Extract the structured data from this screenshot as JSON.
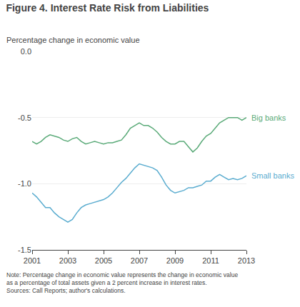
{
  "chart_data": {
    "type": "line",
    "title": "Figure 4. Interest Rate Risk from Liabilities",
    "ylabel": "Percentage change in economic value",
    "note": "Note: Percentage change in economic value represents the change in economic value\nas a percentage of total assets given a 2 percent increase in interest rates.\nSources: Call Reports; author's calculations.",
    "x": [
      2001.0,
      2001.25,
      2001.5,
      2001.75,
      2002.0,
      2002.25,
      2002.5,
      2002.75,
      2003.0,
      2003.25,
      2003.5,
      2003.75,
      2004.0,
      2004.25,
      2004.5,
      2004.75,
      2005.0,
      2005.25,
      2005.5,
      2005.75,
      2006.0,
      2006.25,
      2006.5,
      2006.75,
      2007.0,
      2007.25,
      2007.5,
      2007.75,
      2008.0,
      2008.25,
      2008.5,
      2008.75,
      2009.0,
      2009.25,
      2009.5,
      2009.75,
      2010.0,
      2010.25,
      2010.5,
      2010.75,
      2011.0,
      2011.25,
      2011.5,
      2011.75,
      2012.0,
      2012.25,
      2012.5,
      2012.75,
      2013.0
    ],
    "series": [
      {
        "name": "Big banks",
        "color": "#5aaa78",
        "values": [
          -0.68,
          -0.7,
          -0.68,
          -0.65,
          -0.63,
          -0.64,
          -0.65,
          -0.67,
          -0.68,
          -0.66,
          -0.65,
          -0.68,
          -0.7,
          -0.69,
          -0.68,
          -0.69,
          -0.7,
          -0.69,
          -0.69,
          -0.68,
          -0.67,
          -0.63,
          -0.58,
          -0.56,
          -0.54,
          -0.56,
          -0.56,
          -0.58,
          -0.61,
          -0.65,
          -0.68,
          -0.7,
          -0.7,
          -0.68,
          -0.68,
          -0.72,
          -0.76,
          -0.73,
          -0.68,
          -0.64,
          -0.62,
          -0.58,
          -0.54,
          -0.52,
          -0.5,
          -0.5,
          -0.5,
          -0.52,
          -0.5
        ]
      },
      {
        "name": "Small banks",
        "color": "#5aaccf",
        "values": [
          -1.07,
          -1.1,
          -1.14,
          -1.18,
          -1.18,
          -1.22,
          -1.25,
          -1.27,
          -1.29,
          -1.27,
          -1.22,
          -1.18,
          -1.16,
          -1.15,
          -1.14,
          -1.13,
          -1.12,
          -1.1,
          -1.07,
          -1.03,
          -0.99,
          -0.96,
          -0.92,
          -0.88,
          -0.85,
          -0.86,
          -0.87,
          -0.88,
          -0.9,
          -0.95,
          -1.01,
          -1.05,
          -1.07,
          -1.06,
          -1.05,
          -1.03,
          -1.03,
          -1.02,
          -1.01,
          -0.98,
          -0.98,
          -0.95,
          -0.93,
          -0.95,
          -0.97,
          -0.96,
          -0.97,
          -0.96,
          -0.94
        ]
      }
    ],
    "xlim": [
      2001,
      2013
    ],
    "ylim": [
      -1.5,
      0.0
    ],
    "xticks": [
      2001,
      2003,
      2005,
      2007,
      2009,
      2011,
      2013
    ],
    "yticks": [
      {
        "value": 0.0,
        "label": "0.0"
      },
      -0.5,
      {
        "value": -1.0,
        "label": "-1.0"
      },
      -1.5
    ],
    "grid": true
  }
}
